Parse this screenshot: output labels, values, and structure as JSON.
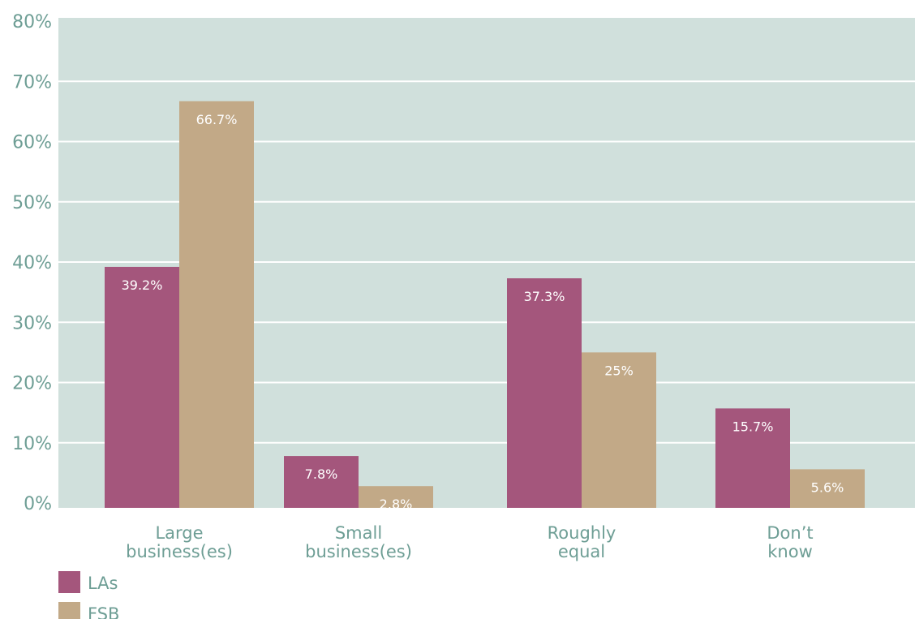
{
  "chart_data": {
    "type": "bar",
    "categories": [
      [
        "Large",
        "business(es)"
      ],
      [
        "Small",
        "business(es)"
      ],
      [
        "Roughly",
        "equal"
      ],
      [
        "Don’t",
        "know"
      ]
    ],
    "series": [
      {
        "name": "LAs",
        "color": "#a4567c",
        "values": [
          39.2,
          7.8,
          37.3,
          15.7
        ],
        "labels": [
          "39.2%",
          "7.8%",
          "37.3%",
          "15.7%"
        ]
      },
      {
        "name": "FSB",
        "color": "#c2a987",
        "values": [
          66.7,
          2.8,
          25,
          5.6
        ],
        "labels": [
          "66.7%",
          "2.8%",
          "25%",
          "5.6%"
        ]
      }
    ],
    "yticks": [
      "0%",
      "10%",
      "20%",
      "30%",
      "40%",
      "50%",
      "60%",
      "70%",
      "80%"
    ],
    "ylim": [
      0,
      80
    ],
    "grid": true,
    "legend": "bottom-left",
    "plot_background": "#d0e0dc",
    "grid_color": "#ffffff",
    "text_color": "#6e9e95"
  }
}
